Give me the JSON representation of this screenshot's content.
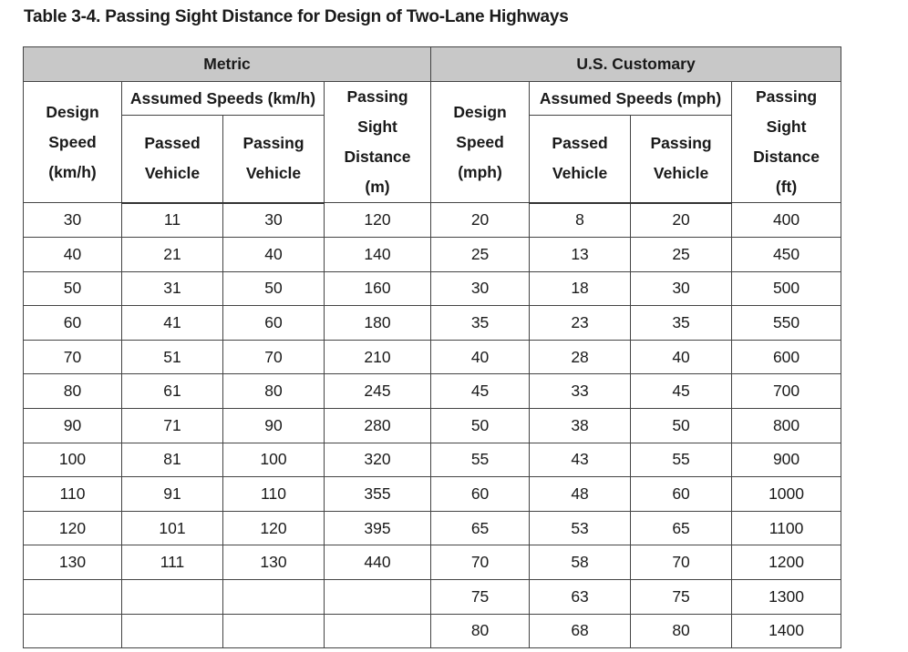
{
  "caption": "Table 3-4. Passing Sight Distance for Design of Two-Lane Highways",
  "groups": {
    "metric": "Metric",
    "us": "U.S. Customary"
  },
  "metric_header": {
    "design_speed": [
      "Design",
      "Speed",
      "(km/h)"
    ],
    "assumed_speeds": "Assumed Speeds (km/h)",
    "passed_vehicle": [
      "Passed",
      "Vehicle"
    ],
    "passing_vehicle": [
      "Passing",
      "Vehicle"
    ],
    "passing_sight_distance": [
      "Passing",
      "Sight",
      "Distance",
      "(m)"
    ]
  },
  "us_header": {
    "design_speed": [
      "Design",
      "Speed",
      "(mph)"
    ],
    "assumed_speeds": "Assumed Speeds (mph)",
    "passed_vehicle": [
      "Passed",
      "Vehicle"
    ],
    "passing_vehicle": [
      "Passing",
      "Vehicle"
    ],
    "passing_sight_distance": [
      "Passing",
      "Sight",
      "Distance",
      "(ft)"
    ]
  },
  "rows": [
    [
      "30",
      "11",
      "30",
      "120",
      "20",
      "8",
      "20",
      "400"
    ],
    [
      "40",
      "21",
      "40",
      "140",
      "25",
      "13",
      "25",
      "450"
    ],
    [
      "50",
      "31",
      "50",
      "160",
      "30",
      "18",
      "30",
      "500"
    ],
    [
      "60",
      "41",
      "60",
      "180",
      "35",
      "23",
      "35",
      "550"
    ],
    [
      "70",
      "51",
      "70",
      "210",
      "40",
      "28",
      "40",
      "600"
    ],
    [
      "80",
      "61",
      "80",
      "245",
      "45",
      "33",
      "45",
      "700"
    ],
    [
      "90",
      "71",
      "90",
      "280",
      "50",
      "38",
      "50",
      "800"
    ],
    [
      "100",
      "81",
      "100",
      "320",
      "55",
      "43",
      "55",
      "900"
    ],
    [
      "110",
      "91",
      "110",
      "355",
      "60",
      "48",
      "60",
      "1000"
    ],
    [
      "120",
      "101",
      "120",
      "395",
      "65",
      "53",
      "65",
      "1100"
    ],
    [
      "130",
      "111",
      "130",
      "440",
      "70",
      "58",
      "70",
      "1200"
    ],
    [
      "",
      "",
      "",
      "",
      "75",
      "63",
      "75",
      "1300"
    ],
    [
      "",
      "",
      "",
      "",
      "80",
      "68",
      "80",
      "1400"
    ]
  ]
}
